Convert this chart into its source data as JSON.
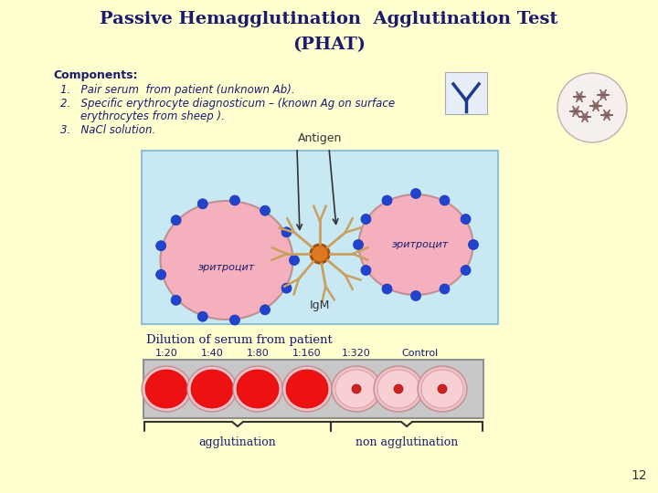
{
  "bg_color": "#FFFFD0",
  "title_line1": "Passive Hemagglutination  Agglutination Test",
  "title_line2": "(PHAT)",
  "title_color": "#1a1a6e",
  "title_fontsize": 14,
  "components_label": "Components:",
  "item1": "Pair serum  from patient (unknown Ab).",
  "item2": "Specific erythrocyte diagnosticum – (known Ag on surface",
  "item2b": "erythrocytes from sheep ).",
  "item3": "NaCl solution.",
  "antigen_label": "Antigen",
  "igm_label": "IgM",
  "eritrocit_label": "эритроцит",
  "diagram_bg": "#c8e8f4",
  "erythrocyte_color": "#f4b0bc",
  "dot_color": "#2244cc",
  "center_color": "#e07820",
  "igm_arm_color": "#c8a060",
  "dilution_label": "Dilution of serum from patient",
  "dilutions": [
    "1:20",
    "1:40",
    "1:80",
    "1:160",
    "1:320",
    "Control"
  ],
  "well_bg": "#cccccc",
  "agg_outer": "#f0c0c8",
  "agg_color": "#ee1111",
  "non_agg_outer": "#f4b0b8",
  "non_agg_inner": "#f8d0d4",
  "non_agg_dot": "#cc2222",
  "agglutination_label": "agglutination",
  "non_agglutination_label": "non agglutination",
  "page_number": "12",
  "ab_icon_color": "#1a3a8e",
  "rbc_icon_bg": "#f8f0f0",
  "antigen_dot_color": "#c08888",
  "antigen_dot_inner": "#e0a8a8"
}
